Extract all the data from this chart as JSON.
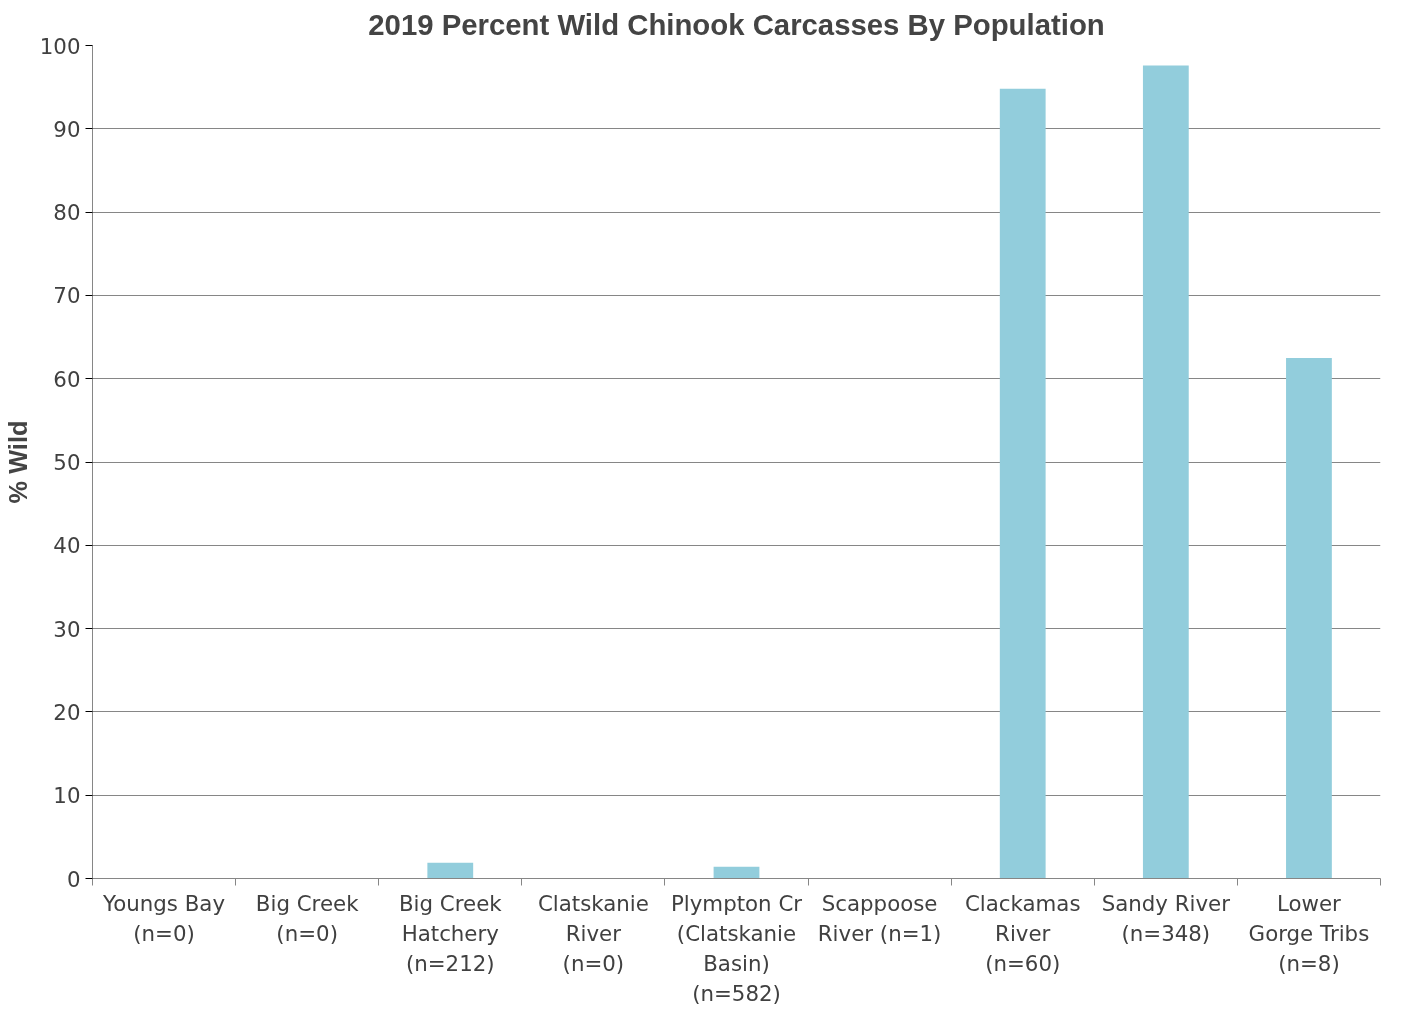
{
  "chart_data": {
    "type": "bar",
    "title": "2019 Percent Wild Chinook Carcasses By Population",
    "ylabel": "% Wild",
    "categories": [
      "Youngs Bay\n(n=0)",
      "Big Creek\n(n=0)",
      "Big Creek\nHatchery\n(n=212)",
      "Clatskanie\nRiver\n(n=0)",
      "Plympton Cr\n(Clatskanie\nBasin)\n(n=582)",
      "Scappoose\nRiver (n=1)",
      "Clackamas\nRiver\n(n=60)",
      "Sandy River\n(n=348)",
      "Lower\nGorge Tribs\n(n=8)"
    ],
    "values": [
      0,
      0,
      1.9,
      0,
      1.4,
      0,
      94.8,
      97.6,
      62.5
    ],
    "color": "#92cddc",
    "ylim": [
      0,
      100
    ],
    "yticks": [
      0,
      10,
      20,
      30,
      40,
      50,
      60,
      70,
      80,
      90,
      100
    ],
    "grid": "y"
  }
}
